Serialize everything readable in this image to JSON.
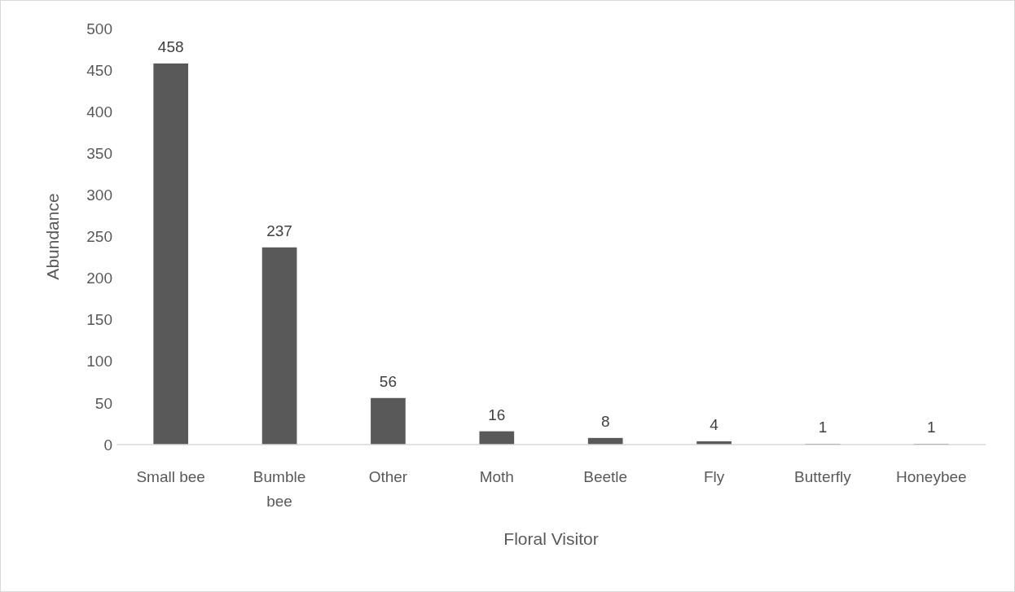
{
  "chart_data": {
    "type": "bar",
    "xlabel": "Floral Visitor",
    "ylabel": "Abundance",
    "categories": [
      "Small bee",
      "Bumble bee",
      "Other",
      "Moth",
      "Beetle",
      "Fly",
      "Butterfly",
      "Honeybee"
    ],
    "values": [
      458,
      237,
      56,
      16,
      8,
      4,
      1,
      1
    ],
    "color": "#595959",
    "ylim": [
      0,
      500
    ],
    "yticks": [
      0,
      50,
      100,
      150,
      200,
      250,
      300,
      350,
      400,
      450,
      500
    ],
    "grid": false,
    "data_labels": true
  }
}
